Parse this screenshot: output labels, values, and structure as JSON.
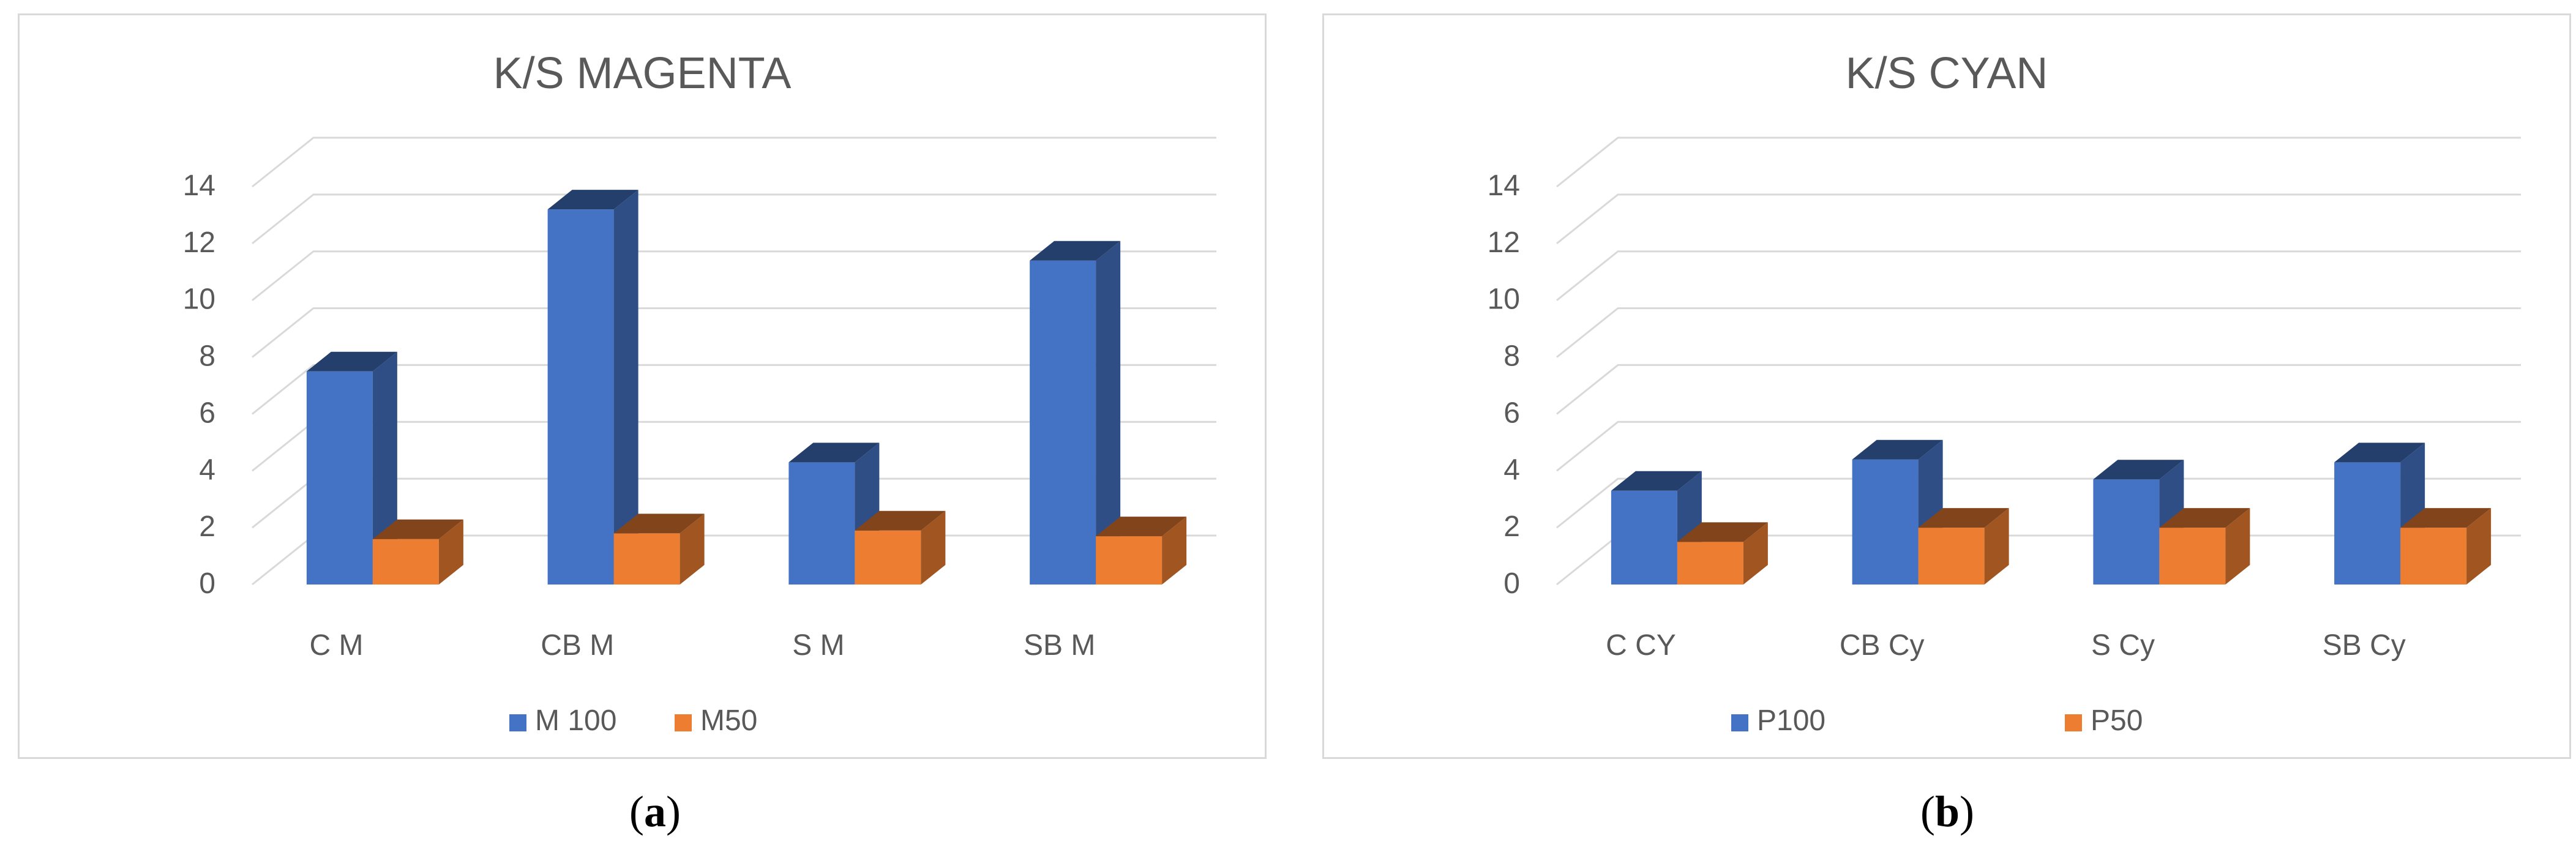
{
  "chart_data": [
    {
      "type": "bar",
      "title": "K/S MAGENTA",
      "categories": [
        "C M",
        "CB M",
        "S M",
        "SB M"
      ],
      "series": [
        {
          "name": "M 100",
          "values": [
            7.5,
            13.2,
            4.3,
            11.4
          ],
          "color": "#4472c4"
        },
        {
          "name": "M50",
          "values": [
            1.6,
            1.8,
            1.9,
            1.7
          ],
          "color": "#ed7d31"
        }
      ],
      "yticks": [
        0,
        2,
        4,
        6,
        8,
        10,
        12,
        14
      ],
      "ylim": [
        0,
        14
      ],
      "grid": true,
      "legend_position": "bottom",
      "caption_letter": "a"
    },
    {
      "type": "bar",
      "title": "K/S CYAN",
      "categories": [
        "C CY",
        "CB Cy",
        "S Cy",
        "SB Cy"
      ],
      "series": [
        {
          "name": "P100",
          "values": [
            3.3,
            4.4,
            3.7,
            4.3
          ],
          "color": "#4472c4"
        },
        {
          "name": "P50",
          "values": [
            1.5,
            2.0,
            2.0,
            2.0
          ],
          "color": "#ed7d31"
        }
      ],
      "yticks": [
        0,
        2,
        4,
        6,
        8,
        10,
        12,
        14
      ],
      "ylim": [
        0,
        14
      ],
      "grid": true,
      "legend_position": "bottom",
      "caption_letter": "b"
    }
  ]
}
